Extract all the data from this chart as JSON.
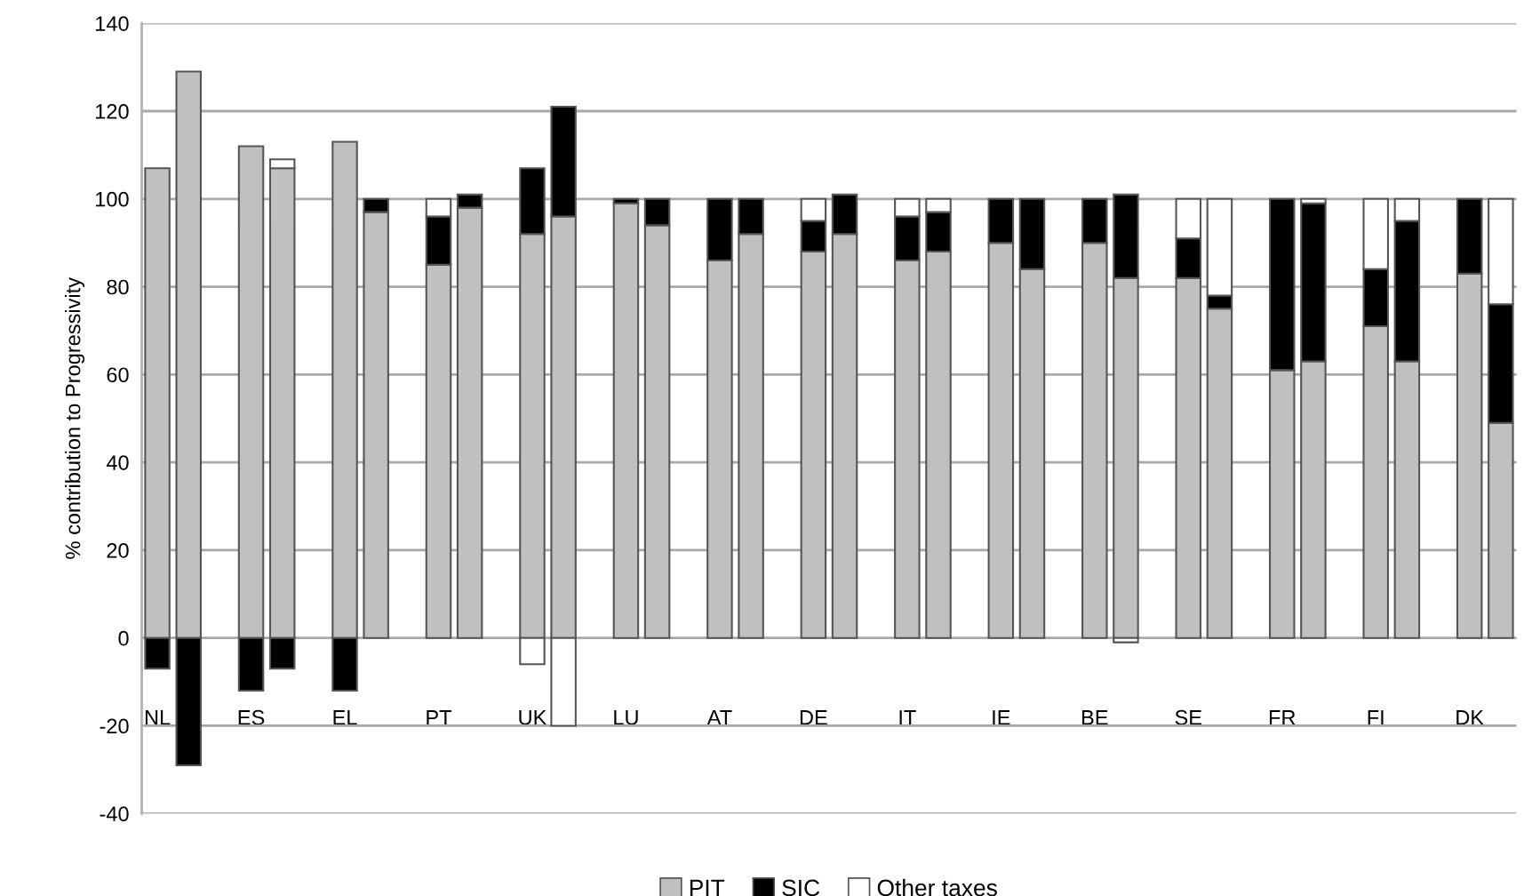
{
  "chart_data": {
    "type": "bar",
    "stacked": true,
    "ylabel": "% contribution to Progressivity",
    "categories": [
      "NL",
      null,
      null,
      "ES",
      null,
      null,
      "EL",
      null,
      null,
      "PT",
      null,
      null,
      "UK",
      null,
      null,
      "LU",
      null,
      null,
      "AT",
      null,
      null,
      "DE",
      null,
      null,
      "IT",
      null,
      null,
      "IE",
      null,
      null,
      "BE",
      null,
      null,
      "SE",
      null,
      null,
      "FR",
      null,
      null,
      "FI",
      null,
      null,
      "DK",
      null
    ],
    "series": [
      {
        "name": "PIT",
        "color": "#c0c0c0",
        "values": [
          107,
          129,
          null,
          112,
          107,
          null,
          113,
          97,
          null,
          85,
          98,
          null,
          92,
          96,
          null,
          99,
          94,
          null,
          86,
          92,
          null,
          88,
          92,
          null,
          86,
          88,
          null,
          90,
          84,
          null,
          90,
          82,
          null,
          82,
          75,
          null,
          61,
          63,
          null,
          71,
          63,
          null,
          83,
          49
        ]
      },
      {
        "name": "SIC",
        "color": "#000000",
        "values": [
          -7,
          -29,
          null,
          -12,
          -7,
          null,
          -12,
          3,
          null,
          11,
          3,
          null,
          15,
          25,
          null,
          1,
          6,
          null,
          14,
          8,
          null,
          7,
          9,
          null,
          10,
          9,
          null,
          10,
          16,
          null,
          10,
          19,
          null,
          9,
          3,
          null,
          39,
          36,
          null,
          13,
          32,
          null,
          17,
          27
        ]
      },
      {
        "name": "Other taxes",
        "color": "#ffffff",
        "values": [
          null,
          null,
          null,
          null,
          2,
          null,
          null,
          null,
          null,
          4,
          null,
          null,
          -6,
          -20,
          null,
          null,
          null,
          null,
          null,
          null,
          null,
          5,
          null,
          null,
          4,
          3,
          null,
          null,
          null,
          null,
          null,
          -1,
          null,
          9,
          22,
          null,
          null,
          1,
          null,
          16,
          5,
          null,
          null,
          24
        ]
      }
    ],
    "ylim": [
      -40,
      140
    ],
    "yticks": [
      -40,
      -20,
      0,
      20,
      40,
      60,
      80,
      100,
      120,
      140
    ],
    "grid": "y",
    "legend": "bottom"
  }
}
